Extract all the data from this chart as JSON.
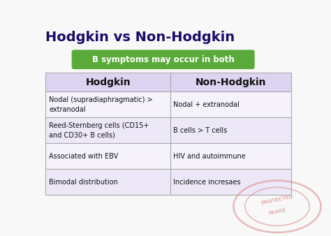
{
  "title": "Hodgkin vs Non-Hodgkin",
  "title_color": "#1a0a6b",
  "title_fontsize": 14,
  "banner_text": "B symptoms may occur in both",
  "banner_bg": "#5aaa3a",
  "banner_text_color": "#ffffff",
  "header_left": "Hodgkin",
  "header_right": "Non-Hodgkin",
  "header_bg": "#dcd4f0",
  "header_text_color": "#111111",
  "row_bg_odd": "#ede8f8",
  "row_bg_even": "#f5f2fc",
  "table_border_color": "#aaaaaa",
  "rows": [
    [
      "Nodal (supradiaphragmatic) >\nextranodal",
      "Nodal + extranodal"
    ],
    [
      "Reed-Sternberg cells (CD15+\nand CD30+ B cells)",
      "B cells > T cells"
    ],
    [
      "Associated with EBV",
      "HIV and autoimmune"
    ],
    [
      "Bimodal distribution",
      "Incidence incresaes"
    ]
  ],
  "bg_color": "#f8f8f8",
  "stamp_color": "#d88888",
  "fig_width": 4.74,
  "fig_height": 3.38,
  "dpi": 100
}
